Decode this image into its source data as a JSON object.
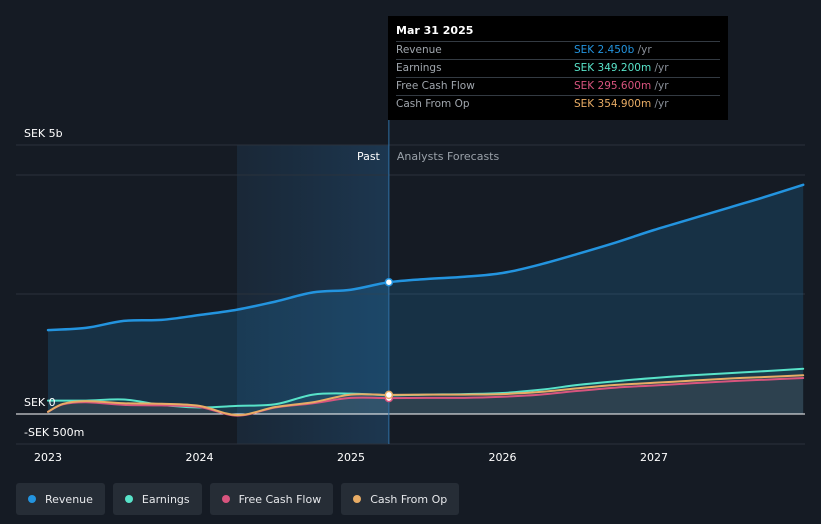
{
  "chart_data": {
    "type": "area",
    "y_axis_labels": [
      "SEK 5b",
      "SEK 0",
      "-SEK 500m"
    ],
    "ylim": [
      -500,
      5000
    ],
    "x_ticks": [
      "2023",
      "2024",
      "2025",
      "2026",
      "2027"
    ],
    "divider": {
      "date": 2025.25,
      "past_label": "Past",
      "forecast_label": "Analysts Forecasts"
    },
    "series": [
      {
        "name": "Revenue",
        "color": "#2394df",
        "x": [
          2023.0,
          2023.25,
          2023.5,
          2023.75,
          2024.0,
          2024.25,
          2024.5,
          2024.75,
          2025.0,
          2025.25,
          2025.5,
          2025.75,
          2026.0,
          2026.25,
          2026.5,
          2026.75,
          2027.0,
          2027.25,
          2027.5,
          2027.75,
          2028.0
        ],
        "y": [
          1560,
          1600,
          1730,
          1750,
          1840,
          1940,
          2090,
          2260,
          2310,
          2450,
          2510,
          2550,
          2620,
          2780,
          2980,
          3190,
          3420,
          3630,
          3840,
          4050,
          4260
        ]
      },
      {
        "name": "Earnings",
        "color": "#58e3c9",
        "x": [
          2023.0,
          2023.25,
          2023.5,
          2023.75,
          2024.0,
          2024.25,
          2024.5,
          2024.75,
          2025.0,
          2025.25,
          2025.5,
          2025.75,
          2026.0,
          2026.25,
          2026.5,
          2026.75,
          2027.0,
          2027.25,
          2027.5,
          2027.75,
          2028.0
        ],
        "y": [
          250,
          250,
          270,
          170,
          120,
          150,
          180,
          360,
          380,
          349.2,
          360,
          370,
          390,
          450,
          540,
          610,
          670,
          720,
          760,
          800,
          840
        ]
      },
      {
        "name": "Free Cash Flow",
        "color": "#d8547e",
        "x": [
          2023.0,
          2023.1,
          2023.25,
          2023.5,
          2023.75,
          2024.0,
          2024.25,
          2024.5,
          2024.75,
          2025.0,
          2025.25,
          2025.5,
          2025.75,
          2026.0,
          2026.25,
          2026.5,
          2026.75,
          2027.0,
          2027.25,
          2027.5,
          2027.75,
          2028.0
        ],
        "y": [
          40,
          180,
          220,
          170,
          160,
          130,
          -30,
          120,
          200,
          300,
          295.6,
          300,
          300,
          320,
          360,
          430,
          490,
          530,
          570,
          610,
          640,
          670
        ]
      },
      {
        "name": "Cash From Op",
        "color": "#e8ac65",
        "x": [
          2023.0,
          2023.1,
          2023.25,
          2023.5,
          2023.75,
          2024.0,
          2024.25,
          2024.5,
          2024.75,
          2025.0,
          2025.25,
          2025.5,
          2025.75,
          2026.0,
          2026.25,
          2026.5,
          2026.75,
          2027.0,
          2027.25,
          2027.5,
          2027.75,
          2028.0
        ],
        "y": [
          40,
          190,
          240,
          200,
          190,
          150,
          -20,
          130,
          220,
          360,
          354.9,
          360,
          360,
          370,
          410,
          480,
          540,
          580,
          620,
          660,
          690,
          720
        ]
      }
    ]
  },
  "tooltip": {
    "date": "Mar 31 2025",
    "rows": [
      {
        "label": "Revenue",
        "value": "SEK 2.450b",
        "unit": "/yr",
        "color": "#2394df"
      },
      {
        "label": "Earnings",
        "value": "SEK 349.200m",
        "unit": "/yr",
        "color": "#58e3c9"
      },
      {
        "label": "Free Cash Flow",
        "value": "SEK 295.600m",
        "unit": "/yr",
        "color": "#d8547e"
      },
      {
        "label": "Cash From Op",
        "value": "SEK 354.900m",
        "unit": "/yr",
        "color": "#e8ac65"
      }
    ]
  },
  "legend": [
    {
      "label": "Revenue",
      "color": "#2394df"
    },
    {
      "label": "Earnings",
      "color": "#58e3c9"
    },
    {
      "label": "Free Cash Flow",
      "color": "#d8547e"
    },
    {
      "label": "Cash From Op",
      "color": "#e8ac65"
    }
  ]
}
